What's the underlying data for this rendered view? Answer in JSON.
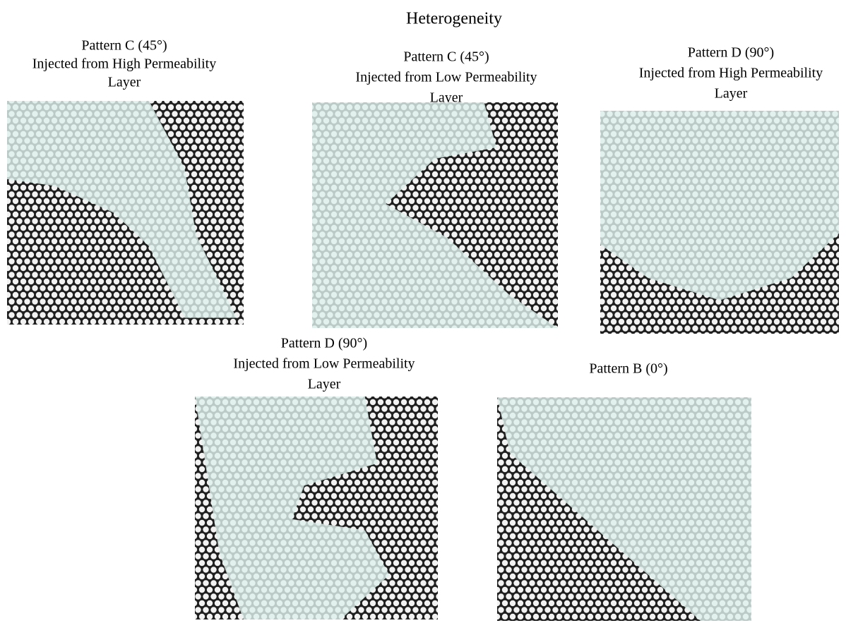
{
  "title": "Heterogeneity",
  "panels": [
    {
      "caption": [
        "Pattern C (45°)",
        "Injected from High Permeability",
        "Layer"
      ]
    },
    {
      "caption": [
        "Pattern C (45°)",
        "Injected from Low Permeability",
        "Layer"
      ]
    },
    {
      "caption": [
        "Pattern D (90°)",
        "Injected from High Permeability",
        "Layer"
      ]
    },
    {
      "caption": [
        "Pattern D (90°)",
        "Injected from Low Permeability",
        "Layer"
      ]
    },
    {
      "caption": [
        "Pattern B (0°)"
      ]
    }
  ]
}
